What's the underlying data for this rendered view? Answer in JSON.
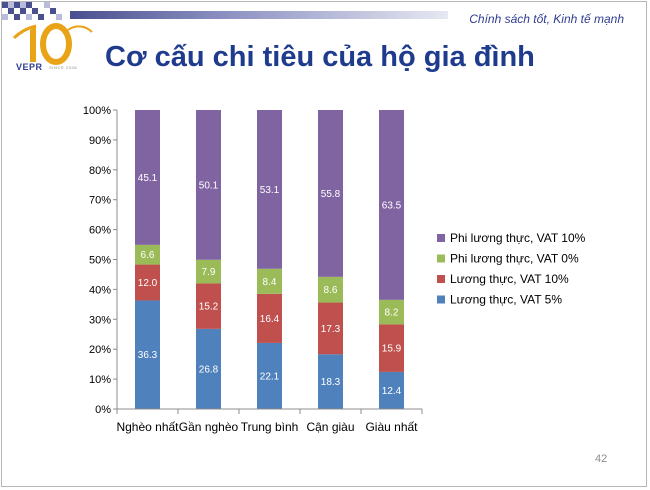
{
  "header": {
    "tagline": "Chính sách tốt, Kinh tế mạnh",
    "title": "Cơ cấu chi tiêu của hộ gia đình",
    "logo_number": "10",
    "logo_text": "VEPR",
    "logo_subtext": "SINCE 2008"
  },
  "page_number": "42",
  "colors": {
    "brand": "#1f3b8e",
    "accent": "#e8a317"
  },
  "chart_data": {
    "type": "bar",
    "stacked": true,
    "percent": true,
    "categories": [
      "Nghèo nhất",
      "Gần nghèo",
      "Trung bình",
      "Cận giàu",
      "Giàu nhất"
    ],
    "y_ticks": [
      "0%",
      "10%",
      "20%",
      "30%",
      "40%",
      "50%",
      "60%",
      "70%",
      "80%",
      "90%",
      "100%"
    ],
    "ylim": [
      0,
      100
    ],
    "grid": false,
    "legend_position": "right",
    "series": [
      {
        "name": "Lương thực, VAT 5%",
        "color": "#4f81bd",
        "values": [
          36.3,
          26.8,
          22.1,
          18.3,
          12.4
        ],
        "labels": [
          "36.3",
          "26.8",
          "22.1",
          "18.3",
          "12.4"
        ]
      },
      {
        "name": "Lương thực, VAT 10%",
        "color": "#c0504d",
        "values": [
          12.0,
          15.2,
          16.4,
          17.3,
          15.9
        ],
        "labels": [
          "12.0",
          "15.2",
          "16.4",
          "17.3",
          "15.9"
        ]
      },
      {
        "name": "Phi lương thực, VAT 0%",
        "color": "#9bbb59",
        "values": [
          6.6,
          7.9,
          8.4,
          8.6,
          8.2
        ],
        "labels": [
          "6.6",
          "7.9",
          "8.4",
          "8.6",
          "8.2"
        ]
      },
      {
        "name": "Phi lương thực, VAT 10%",
        "color": "#8064a2",
        "values": [
          45.1,
          50.1,
          53.1,
          55.8,
          63.5
        ],
        "labels": [
          "45.1",
          "50.1",
          "53.1",
          "55.8",
          "63.5"
        ]
      }
    ]
  }
}
